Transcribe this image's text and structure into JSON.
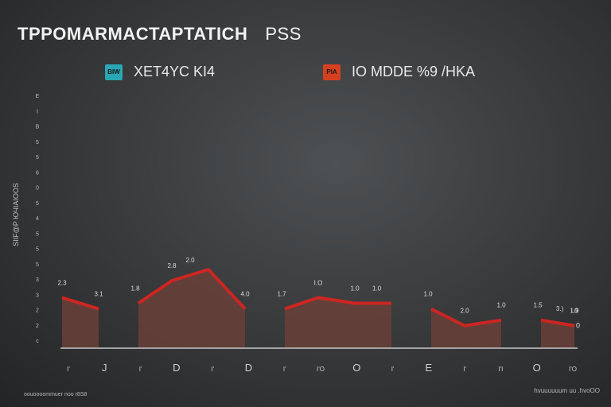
{
  "title": "TPPOMARMACTAPTATICH",
  "title_suffix": "PSS",
  "footer_left": "oouoooommuer noo r8S8",
  "footer_right": "hvuuuuuum uu .hvoOO",
  "colors": {
    "area_fill": "#6a4038",
    "line": "#cc2622",
    "axis": "#c8c8c8",
    "legend1_swatch": "#29a6b4",
    "legend2_swatch": "#d6401e"
  },
  "legend": [
    {
      "label": "XET4YC KI4",
      "icon": "teal-chart-icon",
      "icon_text": "BIW"
    },
    {
      "label": "IO MDDE %9 /HKA",
      "icon": "orange-chart-icon",
      "icon_text": "PIA"
    }
  ],
  "chart_data": {
    "type": "area",
    "ylabel": "SIIF@P ЮЧIAIOOS",
    "y_ticks": [
      "E",
      "I",
      "B",
      "5",
      "5",
      "6",
      "0",
      "5",
      "4",
      "5",
      "5",
      "5",
      "3",
      "3",
      "2",
      "2",
      "c"
    ],
    "ylim": [
      0,
      45
    ],
    "x_tick_labels": [
      "I'",
      "J",
      "I'",
      "D",
      "I'",
      "D",
      "I'",
      "I'O",
      "O",
      "I'",
      "E",
      "I'",
      "I'I",
      "O",
      "I'O"
    ],
    "x": [
      0,
      1,
      2,
      3,
      4,
      5,
      6,
      7,
      8,
      9,
      10,
      11,
      12,
      13,
      14
    ],
    "values": [
      9,
      7,
      8,
      12,
      14,
      7,
      7,
      9,
      8,
      8,
      7,
      4,
      5,
      5,
      4
    ],
    "gaps_after": [
      1,
      5,
      9,
      12
    ],
    "data_labels": [
      {
        "i": 0,
        "text": "2.3"
      },
      {
        "i": 1,
        "text": "3.1"
      },
      {
        "i": 2,
        "text": "1.8"
      },
      {
        "i": 3,
        "text": "2.8"
      },
      {
        "i": 3.5,
        "text": "2.0"
      },
      {
        "i": 5,
        "text": "4.0"
      },
      {
        "i": 6,
        "text": "1.7"
      },
      {
        "i": 7,
        "text": "I.O"
      },
      {
        "i": 8,
        "text": "1.0"
      },
      {
        "i": 8.6,
        "text": "1.0"
      },
      {
        "i": 10,
        "text": "1.0"
      },
      {
        "i": 11,
        "text": "2.0"
      },
      {
        "i": 12,
        "text": "1.0"
      },
      {
        "i": 13,
        "text": "1.5"
      },
      {
        "i": 13.6,
        "text": "3.)"
      },
      {
        "i": 14,
        "text": "I.0"
      },
      {
        "i": 14.6,
        "text": "1.9"
      }
    ],
    "end_label": "0"
  }
}
